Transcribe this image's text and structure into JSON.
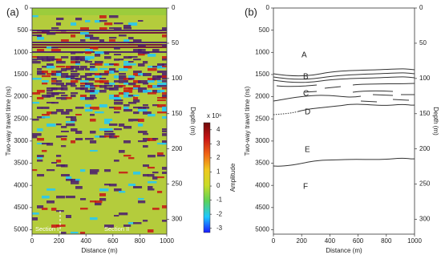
{
  "chart_data": [
    {
      "type": "heatmap",
      "panel_label": "(a)",
      "xlabel": "Distance (m)",
      "ylabel": "Two-way travel time (ns)",
      "y2label": "Depth (m)",
      "xlim": [
        0,
        1000
      ],
      "xticks": [
        0,
        200,
        400,
        600,
        800,
        1000
      ],
      "ylim": [
        0,
        5100
      ],
      "yticks": [
        0,
        500,
        1000,
        1500,
        2000,
        2500,
        3000,
        3500,
        4000,
        4500,
        5000
      ],
      "y_inverted": true,
      "y2lim": [
        0,
        321
      ],
      "y2ticks": [
        0,
        50,
        100,
        150,
        200,
        250,
        300
      ],
      "colorbar": {
        "label": "Amplitude",
        "multiplier": "x 10⁶",
        "clim": [
          -3.3,
          4.5
        ],
        "ticks": [
          -3,
          -2,
          -1,
          0,
          1,
          2,
          3,
          4
        ],
        "colormap": [
          "#1a1aff",
          "#1ec8ff",
          "#5ad25a",
          "#c8dc28",
          "#f0c81e",
          "#f06414",
          "#c81414",
          "#6e0a0a"
        ]
      },
      "annotations": [
        "Section I",
        "Section II"
      ]
    },
    {
      "type": "line",
      "panel_label": "(b)",
      "xlabel": "Distance (m)",
      "ylabel": "Two-way travel time (ns)",
      "y2label": "Depth (m)",
      "xlim": [
        0,
        1000
      ],
      "xticks": [
        0,
        200,
        400,
        600,
        800,
        1000
      ],
      "ylim": [
        0,
        5100
      ],
      "yticks": [
        0,
        500,
        1000,
        1500,
        2000,
        2500,
        3000,
        3500,
        4000,
        4500,
        5000
      ],
      "y_inverted": true,
      "y2lim": [
        0,
        321
      ],
      "y2ticks": [
        0,
        50,
        100,
        150,
        200,
        250,
        300
      ],
      "annotations": [
        "A",
        "B",
        "C",
        "D",
        "E",
        "F"
      ]
    }
  ]
}
